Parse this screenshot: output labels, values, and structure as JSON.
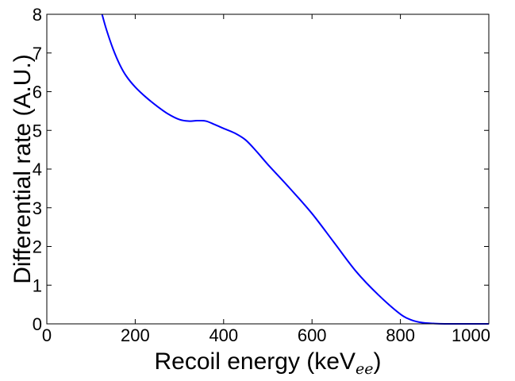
{
  "chart_data": {
    "type": "line",
    "title": "",
    "xlabel": "Recoil energy (keV",
    "xlabel_subscript": "ee",
    "xlabel_suffix": ")",
    "ylabel": "Differential rate (A.U.)",
    "xlim": [
      0,
      1000
    ],
    "ylim": [
      0,
      8
    ],
    "xticks": [
      0,
      200,
      400,
      600,
      800,
      1000
    ],
    "yticks": [
      0,
      1,
      2,
      3,
      4,
      5,
      6,
      7,
      8
    ],
    "grid": false,
    "legend": "none",
    "series": [
      {
        "color": "#0000ff",
        "x": [
          125,
          135,
          150,
          165,
          180,
          200,
          225,
          250,
          275,
          300,
          320,
          340,
          360,
          380,
          400,
          425,
          450,
          475,
          500,
          550,
          600,
          650,
          700,
          750,
          800,
          825,
          850,
          875,
          900,
          950,
          1000
        ],
        "y": [
          8.0,
          7.6,
          7.1,
          6.7,
          6.4,
          6.12,
          5.85,
          5.62,
          5.42,
          5.28,
          5.24,
          5.25,
          5.24,
          5.15,
          5.05,
          4.93,
          4.75,
          4.45,
          4.12,
          3.5,
          2.85,
          2.1,
          1.35,
          0.75,
          0.25,
          0.1,
          0.03,
          0.01,
          0.0,
          0.0,
          0.0
        ]
      }
    ]
  }
}
